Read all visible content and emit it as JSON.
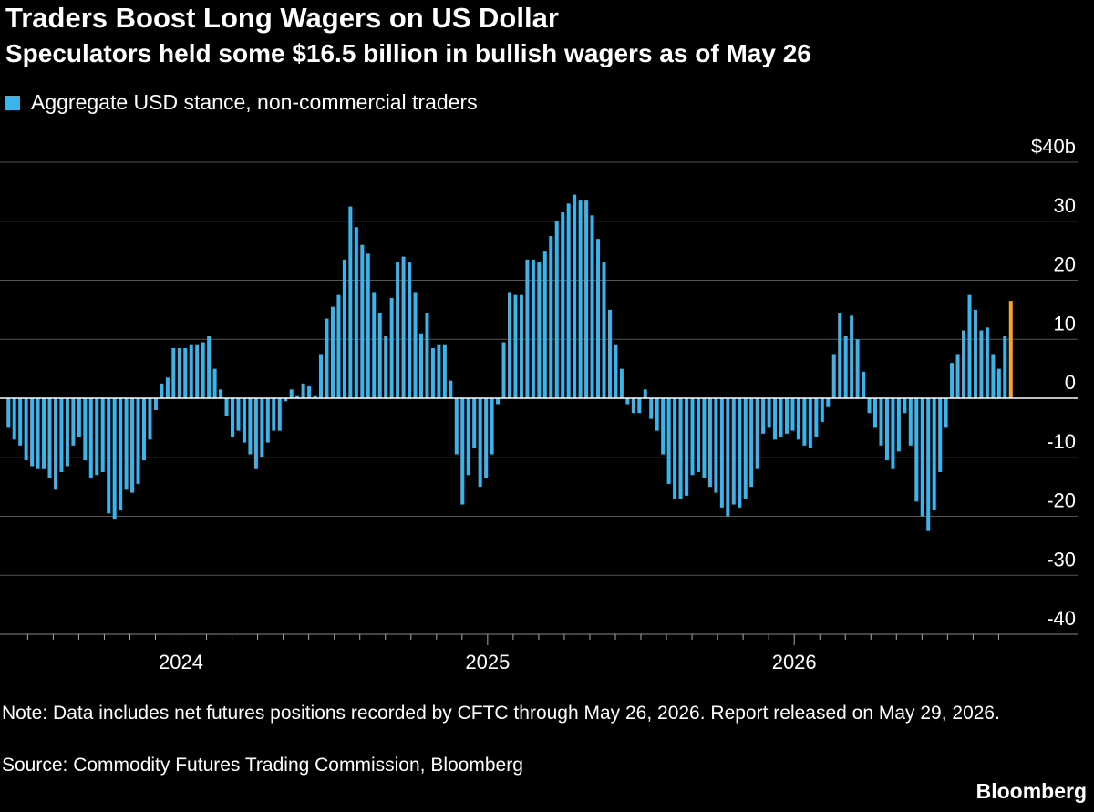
{
  "header": {
    "title": "Traders Boost Long Wagers on US Dollar",
    "subtitle": "Speculators held some $16.5 billion in bullish wagers as of May 26"
  },
  "legend": {
    "label": "Aggregate USD stance, non-commercial traders",
    "color": "#39b5ec"
  },
  "footer": {
    "note": "Note: Data includes net futures positions recorded by CFTC through May 26, 2026. Report released on May 29, 2026.",
    "source": "Source: Commodity Futures Trading Commission, Bloomberg",
    "brand": "Bloomberg"
  },
  "colors": {
    "bars": "#39b5ec",
    "highlight": "#f7a532",
    "grid": "#555555",
    "background": "#000000"
  },
  "chart_data": {
    "type": "bar",
    "title": "Traders Boost Long Wagers on US Dollar",
    "subtitle": "Speculators held some $16.5 billion in bullish wagers as of May 26",
    "ylim": [
      -40,
      40
    ],
    "yticks": [
      {
        "value": 40,
        "label": "$40b"
      },
      {
        "value": 30,
        "label": "30"
      },
      {
        "value": 20,
        "label": "20"
      },
      {
        "value": 10,
        "label": "10"
      },
      {
        "value": 0,
        "label": "0"
      },
      {
        "value": -10,
        "label": "-10"
      },
      {
        "value": -20,
        "label": "-20"
      },
      {
        "value": -30,
        "label": "-30"
      },
      {
        "value": -40,
        "label": "-40"
      }
    ],
    "xticks": [
      "2024",
      "2025",
      "2026"
    ],
    "grid": true,
    "highlight_last": true,
    "series": [
      {
        "name": "Aggregate USD stance, non-commercial traders",
        "values": [
          -5,
          -7,
          -8,
          -10.5,
          -11.5,
          -12,
          -12,
          -13.5,
          -15.5,
          -12.5,
          -11.5,
          -8,
          -6.5,
          -10.5,
          -13.5,
          -13,
          -12.5,
          -19.5,
          -20.5,
          -19,
          -15.5,
          -16,
          -14.5,
          -10.5,
          -7,
          -2,
          2.5,
          3.5,
          8.5,
          8.5,
          8.5,
          9,
          9,
          9.5,
          10.5,
          5,
          1.5,
          -3,
          -6.5,
          -5.5,
          -7.5,
          -9.5,
          -12,
          -10,
          -7.5,
          -5.5,
          -5.5,
          -0.5,
          1.5,
          0.5,
          2.5,
          2,
          0.5,
          7.5,
          13.5,
          15.5,
          17.5,
          23.5,
          32.5,
          29,
          26,
          24.5,
          18,
          14.5,
          10.5,
          17,
          23,
          24,
          23,
          18,
          11,
          14.5,
          8.5,
          9,
          9,
          3,
          -9.5,
          -18,
          -13,
          -8.5,
          -15,
          -13.5,
          -9.5,
          -1,
          9.5,
          18,
          17.5,
          17.5,
          23.5,
          23.5,
          23,
          25,
          27.5,
          30,
          31.5,
          33,
          34.5,
          33.5,
          33.5,
          31,
          27,
          23,
          15,
          9,
          5,
          -1,
          -2.5,
          -2.5,
          1.5,
          -3.5,
          -5.5,
          -9.5,
          -14.5,
          -17,
          -17,
          -16.5,
          -13,
          -12.5,
          -13.5,
          -15,
          -16,
          -18.5,
          -20,
          -18,
          -18.5,
          -17,
          -15,
          -12,
          -6,
          -5,
          -7,
          -6.5,
          -6,
          -5.5,
          -7,
          -8,
          -8.5,
          -6.5,
          -4,
          -1.5,
          7.5,
          14.5,
          10.5,
          14,
          10,
          4.5,
          -2.5,
          -5,
          -8,
          -10.5,
          -12,
          -9,
          -2.5,
          -8,
          -17.5,
          -20,
          -22.5,
          -19,
          -12.5,
          -5,
          6,
          7.5,
          11.5,
          17.5,
          15,
          11.5,
          12,
          7.5,
          5,
          10.5,
          16.5
        ]
      }
    ]
  }
}
